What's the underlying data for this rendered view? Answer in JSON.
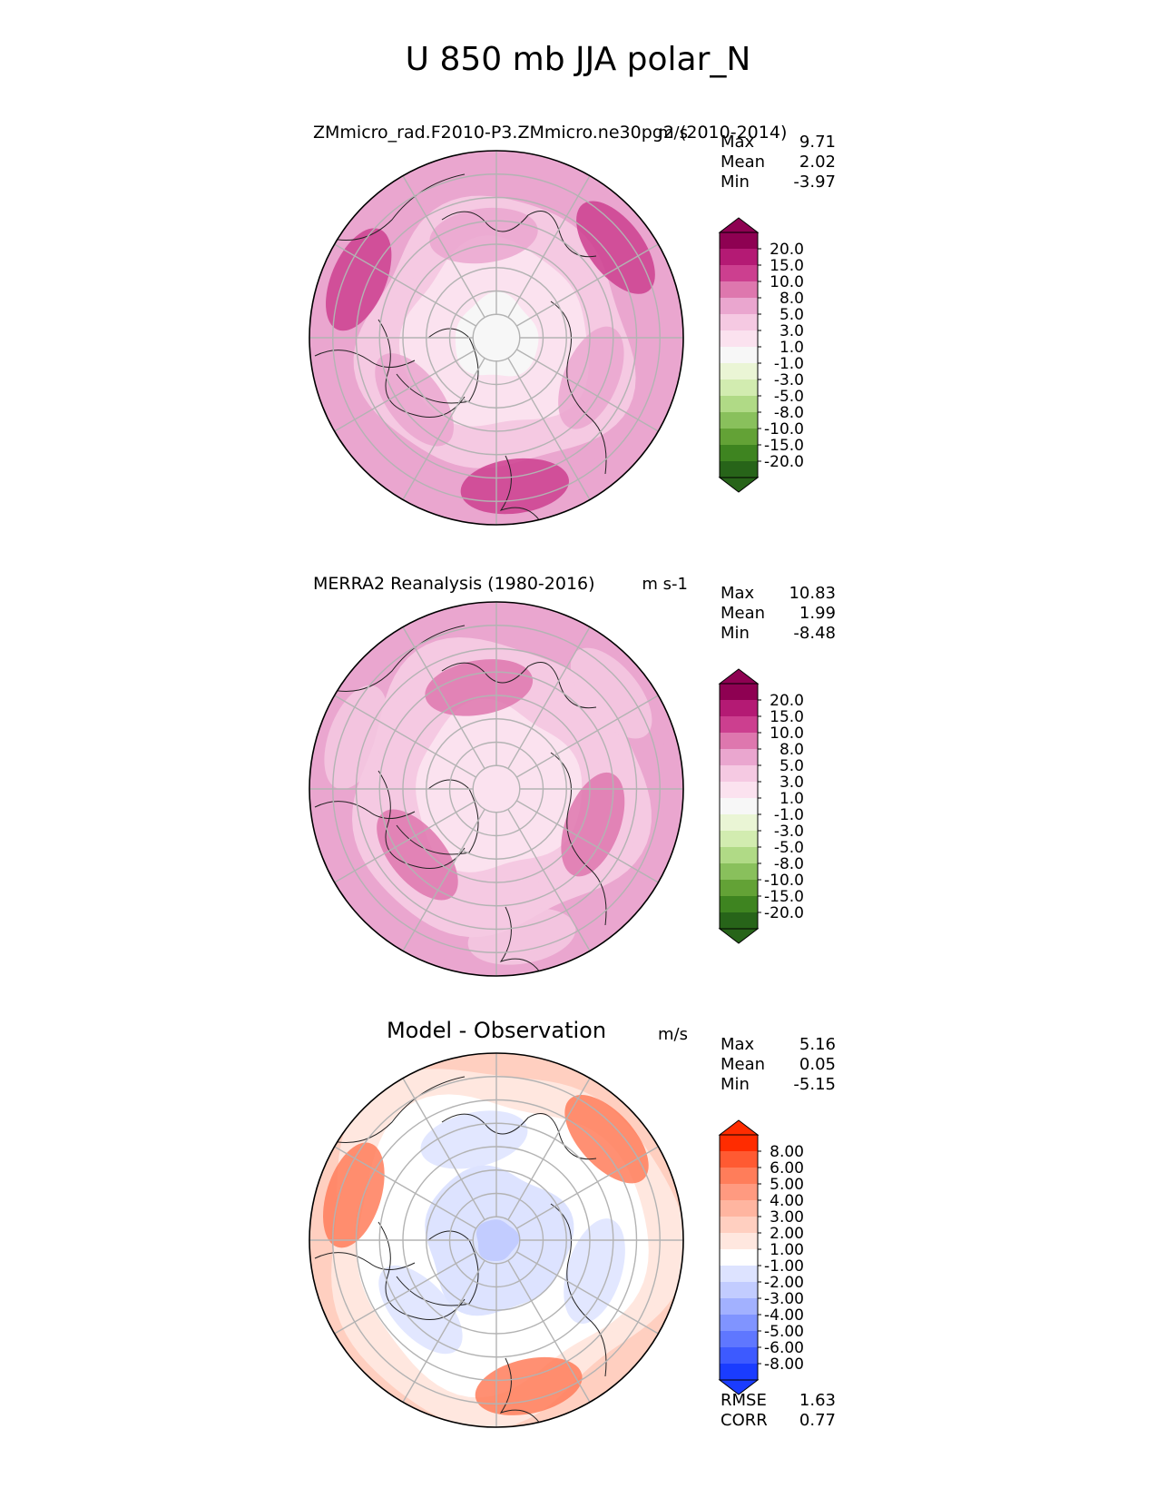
{
  "figure_title": "U 850 mb JJA polar_N",
  "chart_data": [
    {
      "type": "polar-contour-map",
      "title": "ZMmicro_rad.F2010-P3.ZMmicro.ne30pg2 (2010-2014)",
      "units": "m/s",
      "stats": [
        {
          "label": "Max",
          "value": "9.71"
        },
        {
          "label": "Mean",
          "value": "2.02"
        },
        {
          "label": "Min",
          "value": "-3.97"
        }
      ],
      "colorbar": {
        "levels": [
          "20.0",
          "15.0",
          "10.0",
          "8.0",
          "5.0",
          "3.0",
          "1.0",
          "-1.0",
          "-3.0",
          "-5.0",
          "-8.0",
          "-10.0",
          "-15.0",
          "-20.0"
        ],
        "colors": [
          "#8e0152",
          "#b41a74",
          "#cc3f8f",
          "#de77ae",
          "#eaa6cf",
          "#f5c9e2",
          "#fbe2ef",
          "#f7f7f7",
          "#eaf5d5",
          "#d2ecb0",
          "#b0da86",
          "#89c05c",
          "#63a236",
          "#3e8420",
          "#276419"
        ]
      },
      "field": {
        "pole": 0.0,
        "rim": 8.0,
        "amp_lon": 1.2
      }
    },
    {
      "type": "polar-contour-map",
      "title": "MERRA2 Reanalysis (1980-2016)",
      "units": "m s-1",
      "stats": [
        {
          "label": "Max",
          "value": "10.83"
        },
        {
          "label": "Mean",
          "value": "1.99"
        },
        {
          "label": "Min",
          "value": "-8.48"
        }
      ],
      "colorbar": {
        "levels": [
          "20.0",
          "15.0",
          "10.0",
          "8.0",
          "5.0",
          "3.0",
          "1.0",
          "-1.0",
          "-3.0",
          "-5.0",
          "-8.0",
          "-10.0",
          "-15.0",
          "-20.0"
        ],
        "colors": [
          "#8e0152",
          "#b41a74",
          "#cc3f8f",
          "#de77ae",
          "#eaa6cf",
          "#f5c9e2",
          "#fbe2ef",
          "#f7f7f7",
          "#eaf5d5",
          "#d2ecb0",
          "#b0da86",
          "#89c05c",
          "#63a236",
          "#3e8420",
          "#276419"
        ]
      },
      "field": {
        "pole": 1.5,
        "rim": 6.5,
        "amp_lon": 1.0
      }
    },
    {
      "type": "polar-contour-map",
      "title": "Model - Observation",
      "units": "m/s",
      "stats": [
        {
          "label": "Max",
          "value": "5.16"
        },
        {
          "label": "Mean",
          "value": "0.05"
        },
        {
          "label": "Min",
          "value": "-5.15"
        }
      ],
      "colorbar": {
        "levels": [
          "8.00",
          "6.00",
          "5.00",
          "4.00",
          "3.00",
          "2.00",
          "1.00",
          "-1.00",
          "-2.00",
          "-3.00",
          "-4.00",
          "-5.00",
          "-6.00",
          "-8.00"
        ],
        "colors": [
          "#ff2c00",
          "#ff5a32",
          "#ff7d5a",
          "#ff9a80",
          "#ffb5a0",
          "#ffcfc0",
          "#ffe7df",
          "#ffffff",
          "#dde3ff",
          "#c2ccff",
          "#a2b1ff",
          "#8094ff",
          "#5f77ff",
          "#3d5aff",
          "#1a3cff"
        ]
      },
      "field": {
        "pole": -2.2,
        "rim": 2.2,
        "amp_lon": 1.6
      },
      "extra_stats": [
        {
          "label": "RMSE",
          "value": "1.63"
        },
        {
          "label": "CORR",
          "value": "0.77"
        }
      ]
    }
  ]
}
